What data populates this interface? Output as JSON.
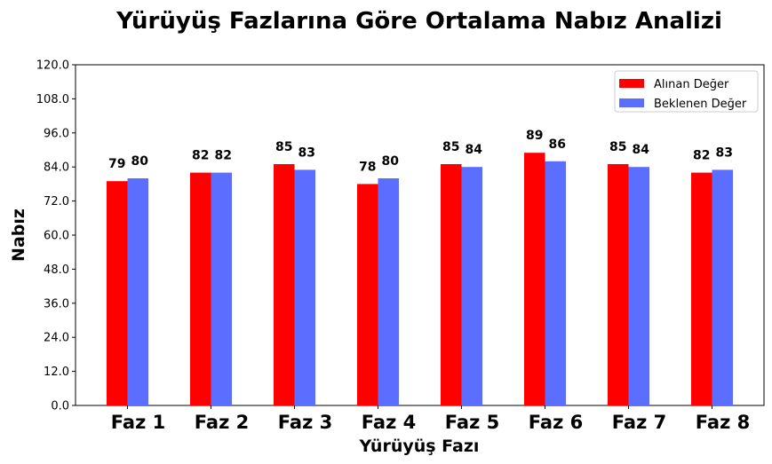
{
  "chart_data": {
    "type": "bar",
    "title": "Yürüyüş Fazlarına Göre Ortalama Nabız Analizi",
    "xlabel": "Yürüyüş Fazı",
    "ylabel": "Nabız",
    "categories": [
      "Faz 1",
      "Faz 2",
      "Faz 3",
      "Faz 4",
      "Faz 5",
      "Faz 6",
      "Faz 7",
      "Faz 8"
    ],
    "series": [
      {
        "name": "Alınan Değer",
        "color": "#ff0000",
        "values": [
          79,
          82,
          85,
          78,
          85,
          89,
          85,
          82
        ]
      },
      {
        "name": "Beklenen Değer",
        "color": "#5b6eff",
        "values": [
          80,
          82,
          83,
          80,
          84,
          86,
          84,
          83
        ]
      }
    ],
    "ylim": [
      0,
      120
    ],
    "yticks": [
      "0.0",
      "12.0",
      "24.0",
      "36.0",
      "48.0",
      "60.0",
      "72.0",
      "84.0",
      "96.0",
      "108.0",
      "120.0"
    ],
    "grid": false,
    "legend": "top-right",
    "data_labels": true
  }
}
